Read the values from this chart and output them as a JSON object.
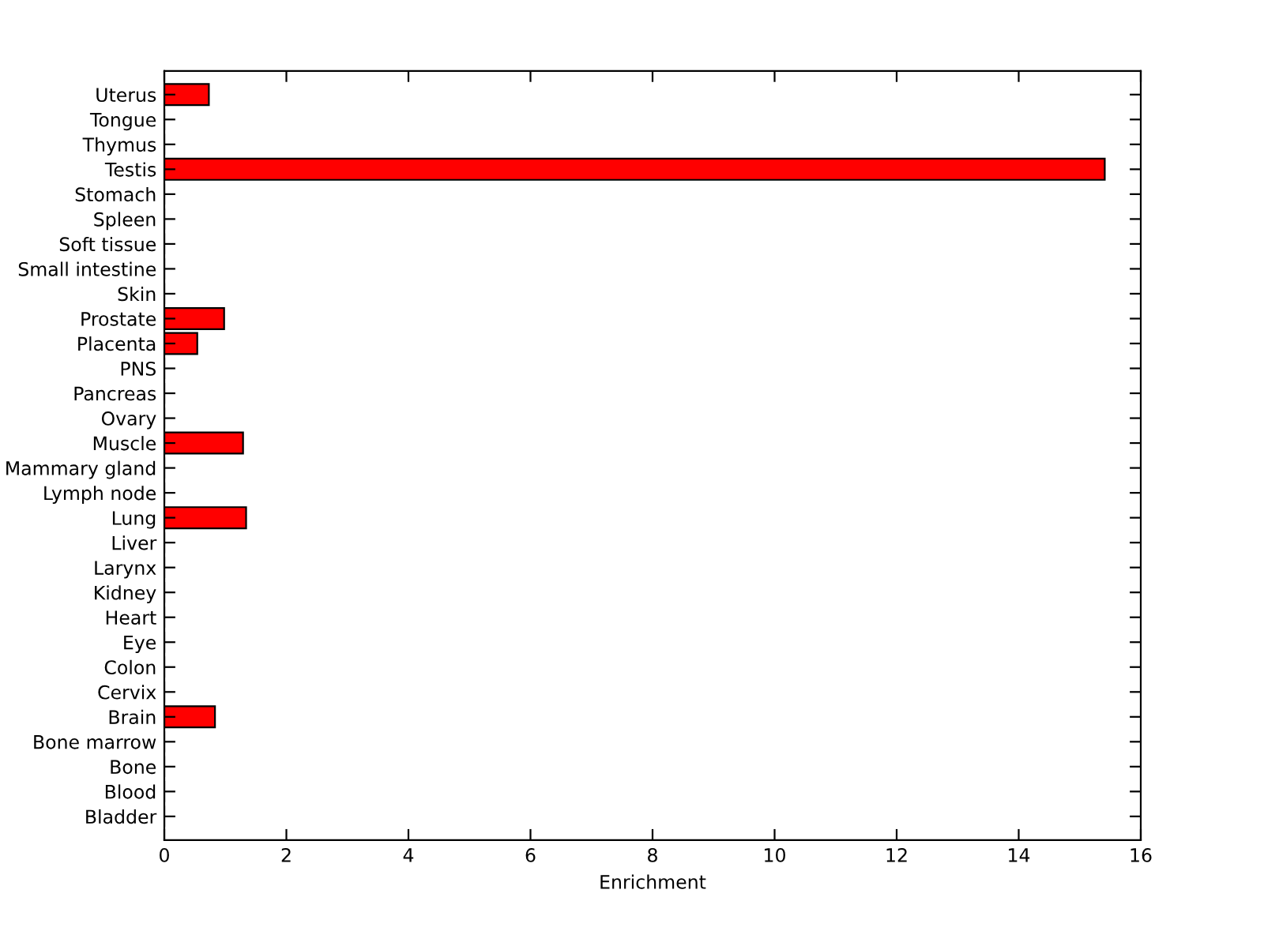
{
  "chart_data": {
    "type": "bar",
    "orientation": "horizontal",
    "xlabel": "Enrichment",
    "categories": [
      "Uterus",
      "Tongue",
      "Thymus",
      "Testis",
      "Stomach",
      "Spleen",
      "Soft tissue",
      "Small intestine",
      "Skin",
      "Prostate",
      "Placenta",
      "PNS",
      "Pancreas",
      "Ovary",
      "Muscle",
      "Mammary gland",
      "Lymph node",
      "Lung",
      "Liver",
      "Larynx",
      "Kidney",
      "Heart",
      "Eye",
      "Colon",
      "Cervix",
      "Brain",
      "Bone marrow",
      "Bone",
      "Blood",
      "Bladder"
    ],
    "values": [
      0.73,
      0,
      0,
      15.41,
      0,
      0,
      0,
      0,
      0,
      0.98,
      0.54,
      0,
      0,
      0,
      1.29,
      0,
      0,
      1.34,
      0,
      0,
      0,
      0,
      0,
      0,
      0,
      0.83,
      0,
      0,
      0,
      0
    ],
    "color": "#ff0000",
    "xlim": [
      0,
      16
    ],
    "xticks": [
      0,
      2,
      4,
      6,
      8,
      10,
      12,
      14,
      16
    ],
    "grid": false
  }
}
